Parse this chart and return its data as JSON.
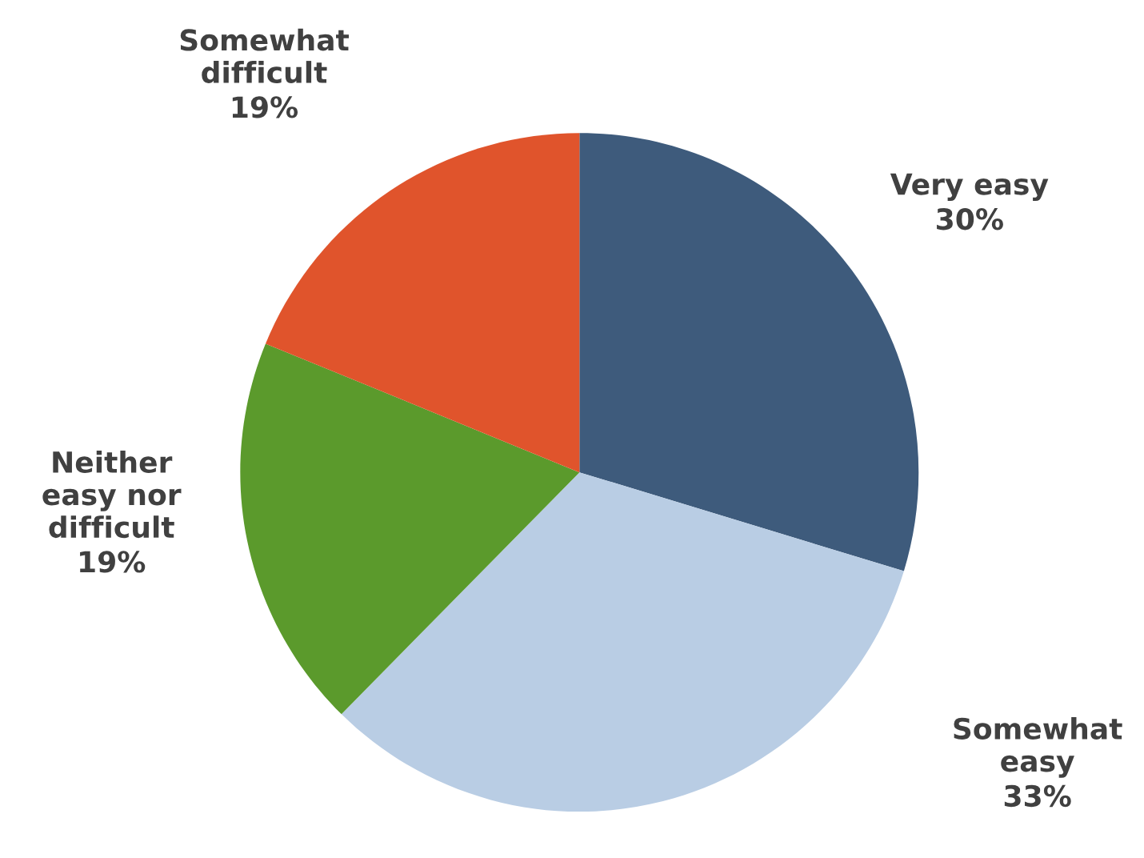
{
  "chart_data": {
    "type": "pie",
    "categories": [
      "Very easy",
      "Somewhat easy",
      "Neither easy nor difficult",
      "Somewhat difficult"
    ],
    "values": [
      30,
      33,
      19,
      19
    ],
    "colors": [
      "#3e5b7c",
      "#b9cde4",
      "#5b9a2c",
      "#e0542c"
    ],
    "value_labels": [
      "30%",
      "33%",
      "19%",
      "19%"
    ]
  }
}
